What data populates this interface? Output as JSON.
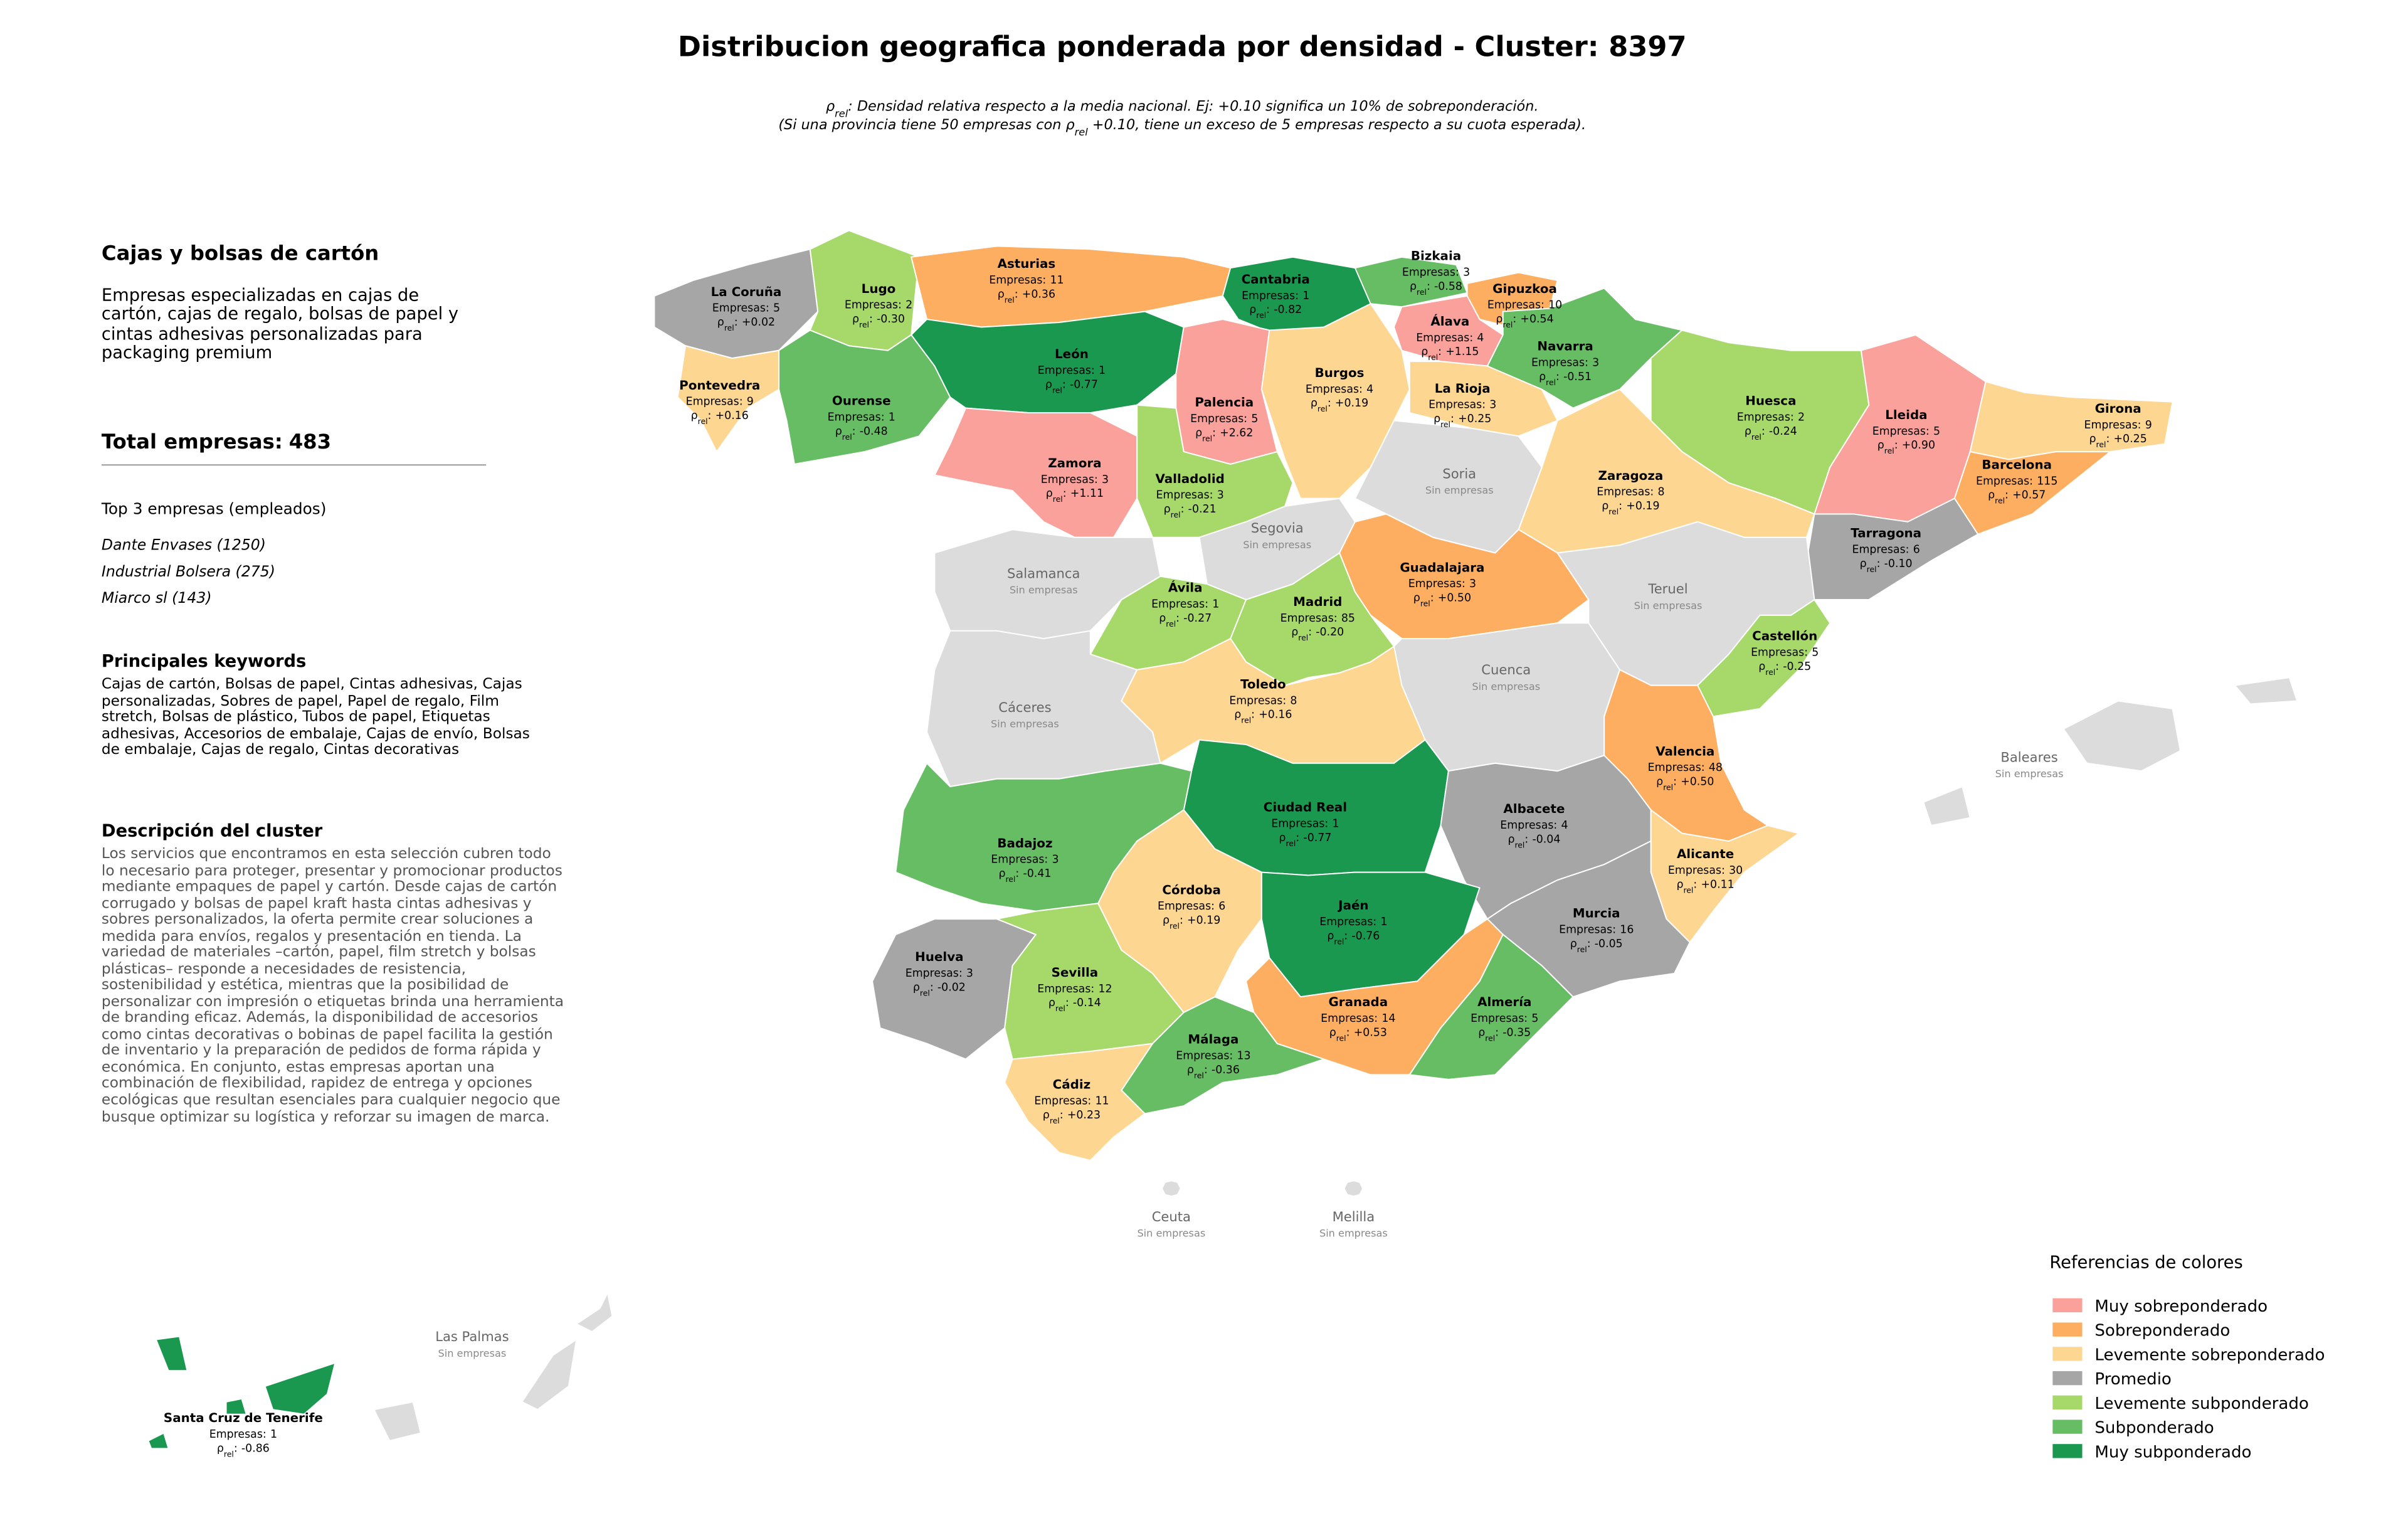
{
  "title": "Distribucion geografica ponderada por densidad - Cluster: 8397",
  "subtitle_lines": [
    [
      "ρ",
      "rel",
      ": Densidad relativa respecto a la media nacional. Ej: +0.10 significa un 10% de sobreponderación."
    ],
    [
      "(Si una provincia tiene 50 empresas con ρ",
      "rel",
      " +0.10, tiene un exceso de 5 empresas respecto a su cuota esperada)."
    ]
  ],
  "panel": {
    "heading": "Cajas y bolsas de cartón",
    "summary": "Empresas especializadas en cajas de cartón, cajas de regalo, bolsas de papel y cintas adhesivas personalizadas para packaging premium",
    "total_label": "Total empresas:",
    "total": 483,
    "top_heading": "Top 3 empresas (empleados)",
    "top": [
      "Dante Envases (1250)",
      "Industrial Bolsera (275)",
      "Miarco sl (143)"
    ],
    "keywords_heading": "Principales keywords",
    "keywords": "Cajas de cartón, Bolsas de papel, Cintas adhesivas, Cajas personalizadas, Sobres de papel, Papel de regalo, Film stretch, Bolsas de plástico, Tubos de papel, Etiquetas adhesivas, Accesorios de embalaje, Cajas de envío, Bolsas de embalaje, Cajas de regalo, Cintas decorativas",
    "description_heading": "Descripción del cluster",
    "description": "Los servicios que encontramos en esta selección cubren todo lo necesario para proteger, presentar y promocionar productos mediante empaques de papel y cartón. Desde cajas de cartón corrugado y bolsas de papel kraft hasta cintas adhesivas y sobres personalizados, la oferta permite crear soluciones a medida para envíos, regalos y presentación en tienda. La variedad de materiales –cartón, papel, film stretch y bolsas plásticas– responde a necesidades de resistencia, sostenibilidad y estética, mientras que la posibilidad de personalizar con impresión o etiquetas brinda una herramienta de branding eficaz. Además, la disponibilidad de accesorios como cintas decorativas o bobinas de papel facilita la gestión de inventario y la preparación de pedidos de forma rápida y económica. En conjunto, estas empresas aportan una combinación de flexibilidad, rapidez de entrega y opciones ecológicas que resultan esenciales para cualquier negocio que busque optimizar su logística y reforzar su imagen de marca."
  },
  "map": {
    "count_label": "Empresas:",
    "rho_symbol": "ρ",
    "rho_sub": "rel",
    "rho_colon": ":",
    "none_label": "Sin empresas",
    "provinces": [
      {
        "name": "La Coruña",
        "empresas": 5,
        "rho": 0.02,
        "rho_label": "+0.02",
        "color": "#a6a6a6"
      },
      {
        "name": "Lugo",
        "empresas": 2,
        "rho": -0.3,
        "rho_label": "-0.30",
        "color": "#a6d96a"
      },
      {
        "name": "Asturias",
        "empresas": 11,
        "rho": 0.36,
        "rho_label": "+0.36",
        "color": "#fdae61"
      },
      {
        "name": "Cantabria",
        "empresas": 1,
        "rho": -0.82,
        "rho_label": "-0.82",
        "color": "#1a9850"
      },
      {
        "name": "Bizkaia",
        "empresas": 3,
        "rho": -0.58,
        "rho_label": "-0.58",
        "color": "#66bd63"
      },
      {
        "name": "Gipuzkoa",
        "empresas": 10,
        "rho": 0.54,
        "rho_label": "+0.54",
        "color": "#fdae61"
      },
      {
        "name": "Álava",
        "empresas": 4,
        "rho": 1.15,
        "rho_label": "+1.15",
        "color": "#f9a19a"
      },
      {
        "name": "Navarra",
        "empresas": 3,
        "rho": -0.51,
        "rho_label": "-0.51",
        "color": "#66bd63"
      },
      {
        "name": "Pontevedra",
        "empresas": 9,
        "rho": 0.16,
        "rho_label": "+0.16",
        "color": "#fdd692"
      },
      {
        "name": "Ourense",
        "empresas": 1,
        "rho": -0.48,
        "rho_label": "-0.48",
        "color": "#66bd63"
      },
      {
        "name": "León",
        "empresas": 1,
        "rho": -0.77,
        "rho_label": "-0.77",
        "color": "#1a9850"
      },
      {
        "name": "Palencia",
        "empresas": 5,
        "rho": 2.62,
        "rho_label": "+2.62",
        "color": "#f9a19a"
      },
      {
        "name": "Burgos",
        "empresas": 4,
        "rho": 0.19,
        "rho_label": "+0.19",
        "color": "#fdd692"
      },
      {
        "name": "La Rioja",
        "empresas": 3,
        "rho": 0.25,
        "rho_label": "+0.25",
        "color": "#fdd692"
      },
      {
        "name": "Huesca",
        "empresas": 2,
        "rho": -0.24,
        "rho_label": "-0.24",
        "color": "#a6d96a"
      },
      {
        "name": "Lleida",
        "empresas": 5,
        "rho": 0.9,
        "rho_label": "+0.90",
        "color": "#f9a19a"
      },
      {
        "name": "Girona",
        "empresas": 9,
        "rho": 0.25,
        "rho_label": "+0.25",
        "color": "#fdd692"
      },
      {
        "name": "Barcelona",
        "empresas": 115,
        "rho": 0.57,
        "rho_label": "+0.57",
        "color": "#fdae61"
      },
      {
        "name": "Zamora",
        "empresas": 3,
        "rho": 1.11,
        "rho_label": "+1.11",
        "color": "#f9a19a"
      },
      {
        "name": "Valladolid",
        "empresas": 3,
        "rho": -0.21,
        "rho_label": "-0.21",
        "color": "#a6d96a"
      },
      {
        "name": "Soria",
        "color": "#dcdcdc"
      },
      {
        "name": "Zaragoza",
        "empresas": 8,
        "rho": 0.19,
        "rho_label": "+0.19",
        "color": "#fdd692"
      },
      {
        "name": "Tarragona",
        "empresas": 6,
        "rho": -0.1,
        "rho_label": "-0.10",
        "color": "#a6a6a6"
      },
      {
        "name": "Salamanca",
        "color": "#dcdcdc"
      },
      {
        "name": "Segovia",
        "color": "#dcdcdc"
      },
      {
        "name": "Guadalajara",
        "empresas": 3,
        "rho": 0.5,
        "rho_label": "+0.50",
        "color": "#fdae61"
      },
      {
        "name": "Teruel",
        "color": "#dcdcdc"
      },
      {
        "name": "Ávila",
        "empresas": 1,
        "rho": -0.27,
        "rho_label": "-0.27",
        "color": "#a6d96a"
      },
      {
        "name": "Madrid",
        "empresas": 85,
        "rho": -0.2,
        "rho_label": "-0.20",
        "color": "#a6d96a"
      },
      {
        "name": "Castellón",
        "empresas": 5,
        "rho": -0.25,
        "rho_label": "-0.25",
        "color": "#a6d96a"
      },
      {
        "name": "Cuenca",
        "color": "#dcdcdc"
      },
      {
        "name": "Cáceres",
        "color": "#dcdcdc"
      },
      {
        "name": "Toledo",
        "empresas": 8,
        "rho": 0.16,
        "rho_label": "+0.16",
        "color": "#fdd692"
      },
      {
        "name": "Baleares",
        "color": "#dcdcdc"
      },
      {
        "name": "Valencia",
        "empresas": 48,
        "rho": 0.5,
        "rho_label": "+0.50",
        "color": "#fdae61"
      },
      {
        "name": "Ciudad Real",
        "empresas": 1,
        "rho": -0.77,
        "rho_label": "-0.77",
        "color": "#1a9850"
      },
      {
        "name": "Albacete",
        "empresas": 4,
        "rho": -0.04,
        "rho_label": "-0.04",
        "color": "#a6a6a6"
      },
      {
        "name": "Badajoz",
        "empresas": 3,
        "rho": -0.41,
        "rho_label": "-0.41",
        "color": "#66bd63"
      },
      {
        "name": "Alicante",
        "empresas": 30,
        "rho": 0.11,
        "rho_label": "+0.11",
        "color": "#fdd692"
      },
      {
        "name": "Córdoba",
        "empresas": 6,
        "rho": 0.19,
        "rho_label": "+0.19",
        "color": "#fdd692"
      },
      {
        "name": "Jaén",
        "empresas": 1,
        "rho": -0.76,
        "rho_label": "-0.76",
        "color": "#1a9850"
      },
      {
        "name": "Murcia",
        "empresas": 16,
        "rho": -0.05,
        "rho_label": "-0.05",
        "color": "#a6a6a6"
      },
      {
        "name": "Huelva",
        "empresas": 3,
        "rho": -0.02,
        "rho_label": "-0.02",
        "color": "#a6a6a6"
      },
      {
        "name": "Sevilla",
        "empresas": 12,
        "rho": -0.14,
        "rho_label": "-0.14",
        "color": "#a6d96a"
      },
      {
        "name": "Granada",
        "empresas": 14,
        "rho": 0.53,
        "rho_label": "+0.53",
        "color": "#fdae61"
      },
      {
        "name": "Almería",
        "empresas": 5,
        "rho": -0.35,
        "rho_label": "-0.35",
        "color": "#66bd63"
      },
      {
        "name": "Málaga",
        "empresas": 13,
        "rho": -0.36,
        "rho_label": "-0.36",
        "color": "#66bd63"
      },
      {
        "name": "Cádiz",
        "empresas": 11,
        "rho": 0.23,
        "rho_label": "+0.23",
        "color": "#fdd692"
      },
      {
        "name": "Ceuta",
        "color": "#dcdcdc"
      },
      {
        "name": "Melilla",
        "color": "#dcdcdc"
      },
      {
        "name": "Las Palmas",
        "color": "#dcdcdc"
      },
      {
        "name": "Santa Cruz de Tenerife",
        "empresas": 1,
        "rho": -0.86,
        "rho_label": "-0.86",
        "color": "#1a9850"
      }
    ]
  },
  "legend": {
    "title": "Referencias de colores",
    "items": [
      {
        "name": "Muy sobreponderado",
        "color": "#f9a19a"
      },
      {
        "name": "Sobreponderado",
        "color": "#fdae61"
      },
      {
        "name": "Levemente sobreponderado",
        "color": "#fdd692"
      },
      {
        "name": "Promedio",
        "color": "#a6a6a6"
      },
      {
        "name": "Levemente subponderado",
        "color": "#a6d96a"
      },
      {
        "name": "Subponderado",
        "color": "#66bd63"
      },
      {
        "name": "Muy subponderado",
        "color": "#1a9850"
      }
    ]
  }
}
